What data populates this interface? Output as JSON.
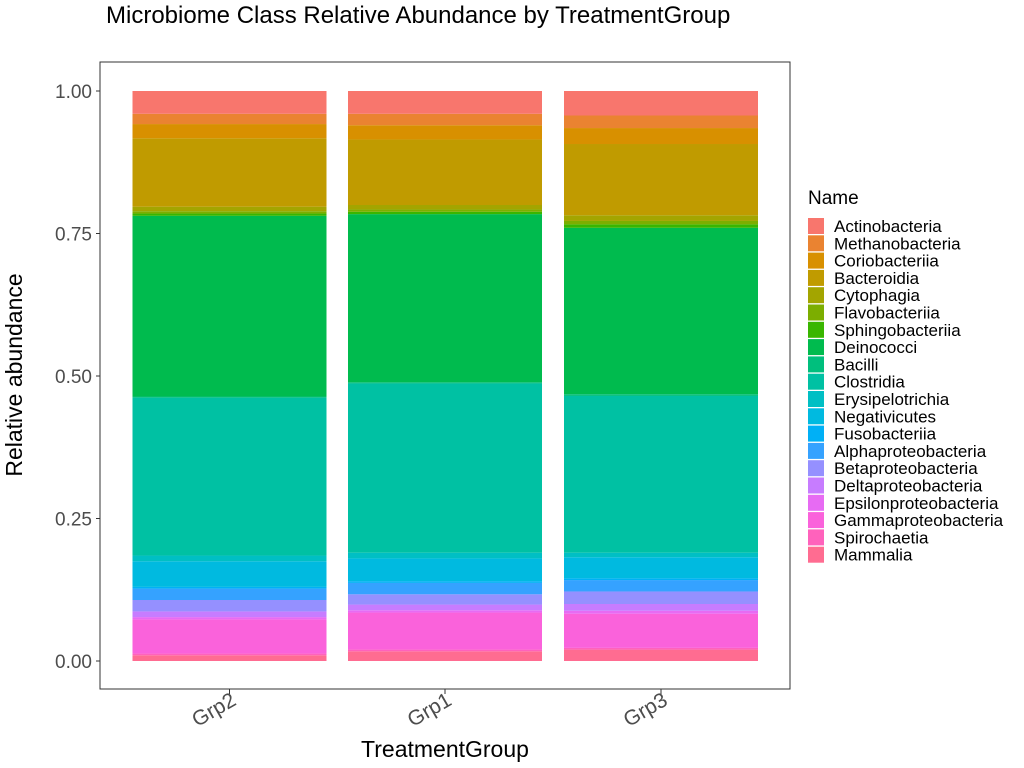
{
  "chart_data": {
    "type": "bar",
    "stacked": true,
    "title": "Microbiome Class Relative Abundance by TreatmentGroup",
    "xlabel": "TreatmentGroup",
    "ylabel": "Relative abundance",
    "ylim": [
      0,
      1
    ],
    "yticks": [
      "0.00",
      "0.25",
      "0.50",
      "0.75",
      "1.00"
    ],
    "ytick_values": [
      0,
      0.25,
      0.5,
      0.75,
      1.0
    ],
    "categories": [
      "Grp2",
      "Grp1",
      "Grp3"
    ],
    "grid": false,
    "legend_title": "Name",
    "legend_position": "right",
    "series": [
      {
        "name": "Actinobacteria",
        "color": "#F8766D",
        "values": [
          0.04,
          0.04,
          0.043
        ]
      },
      {
        "name": "Methanobacteria",
        "color": "#EA8331",
        "values": [
          0.018,
          0.02,
          0.022
        ]
      },
      {
        "name": "Coriobacteriia",
        "color": "#D89000",
        "values": [
          0.025,
          0.025,
          0.028
        ]
      },
      {
        "name": "Bacteroidia",
        "color": "#C09B00",
        "values": [
          0.12,
          0.115,
          0.125
        ]
      },
      {
        "name": "Cytophagia",
        "color": "#A3A500",
        "values": [
          0.008,
          0.008,
          0.01
        ]
      },
      {
        "name": "Flavobacteriia",
        "color": "#7CAE00",
        "values": [
          0.004,
          0.004,
          0.006
        ]
      },
      {
        "name": "Sphingobacteriia",
        "color": "#39B600",
        "values": [
          0.004,
          0.004,
          0.006
        ]
      },
      {
        "name": "Deinococci",
        "color": "#00BB4E",
        "values": [
          0.317,
          0.295,
          0.292
        ]
      },
      {
        "name": "Bacilli",
        "color": "#00BF7D",
        "values": [
          0.002,
          0.002,
          0.003
        ]
      },
      {
        "name": "Clostridia",
        "color": "#00C1A3",
        "values": [
          0.277,
          0.297,
          0.275
        ]
      },
      {
        "name": "Erysipelotrichia",
        "color": "#00BFC4",
        "values": [
          0.01,
          0.01,
          0.008
        ]
      },
      {
        "name": "Negativicutes",
        "color": "#00BAE0",
        "values": [
          0.045,
          0.04,
          0.037
        ]
      },
      {
        "name": "Fusobacteriia",
        "color": "#00B0F6",
        "values": [
          0.003,
          0.003,
          0.003
        ]
      },
      {
        "name": "Alphaproteobacteria",
        "color": "#35A2FF",
        "values": [
          0.02,
          0.02,
          0.02
        ]
      },
      {
        "name": "Betaproteobacteria",
        "color": "#9590FF",
        "values": [
          0.02,
          0.018,
          0.022
        ]
      },
      {
        "name": "Deltaproteobacteria",
        "color": "#C77CFF",
        "values": [
          0.01,
          0.01,
          0.012
        ]
      },
      {
        "name": "Epsilonproteobacteria",
        "color": "#E76BF3",
        "values": [
          0.004,
          0.004,
          0.005
        ]
      },
      {
        "name": "Gammaproteobacteria",
        "color": "#FA62DB",
        "values": [
          0.06,
          0.065,
          0.06
        ]
      },
      {
        "name": "Spirochaetia",
        "color": "#FF62BC",
        "values": [
          0.003,
          0.003,
          0.003
        ]
      },
      {
        "name": "Mammalia",
        "color": "#FF6C91",
        "values": [
          0.01,
          0.017,
          0.02
        ]
      }
    ]
  }
}
